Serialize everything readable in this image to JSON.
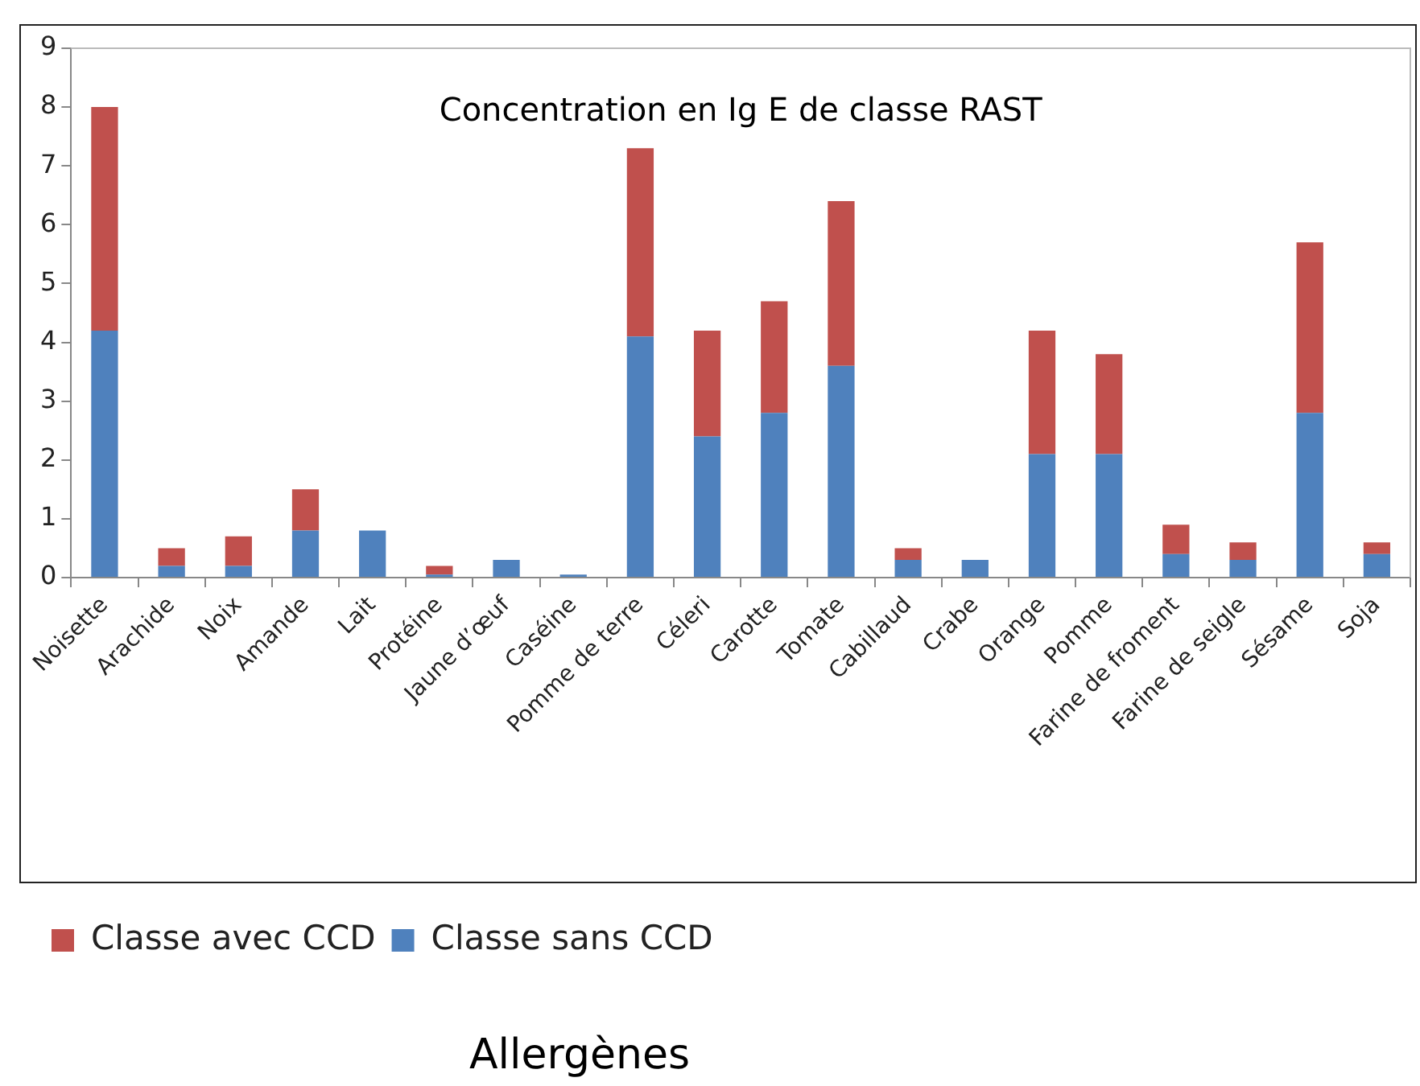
{
  "chart_data": {
    "type": "bar",
    "title": "Concentration en Ig E de classe RAST",
    "annotations": [
      "Allergènes"
    ],
    "categories": [
      "Noisette",
      "Arachide",
      "Noix",
      "Amande",
      "Lait",
      "Protéine",
      "Jaune d’œuf",
      "Caséine",
      "Pomme de terre",
      "Céleri",
      "Carotte",
      "Tomate",
      "Cabillaud",
      "Crabe",
      "Orange",
      "Pomme",
      "Farine de froment",
      "Farine de seigle",
      "Sésame",
      "Soja"
    ],
    "stacked": true,
    "ylim": [
      0,
      9
    ],
    "yticks": [
      0,
      1,
      2,
      3,
      4,
      5,
      6,
      7,
      8,
      9
    ],
    "legend": "bottom",
    "series": [
      {
        "name": "Classe sans CCD",
        "color": "#4f81bd",
        "values": [
          4.2,
          0.2,
          0.2,
          0.8,
          0.8,
          0.05,
          0.3,
          0.05,
          4.1,
          2.4,
          2.8,
          3.6,
          0.3,
          0.3,
          2.1,
          2.1,
          0.4,
          0.3,
          2.8,
          0.4
        ]
      },
      {
        "name": "Classe avec CCD",
        "color": "#c0504d",
        "values": [
          3.8,
          0.3,
          0.5,
          0.7,
          0,
          0.15,
          0,
          0,
          3.2,
          1.8,
          1.9,
          2.8,
          0.2,
          0,
          2.1,
          1.7,
          0.5,
          0.3,
          2.9,
          0.2
        ]
      }
    ]
  }
}
